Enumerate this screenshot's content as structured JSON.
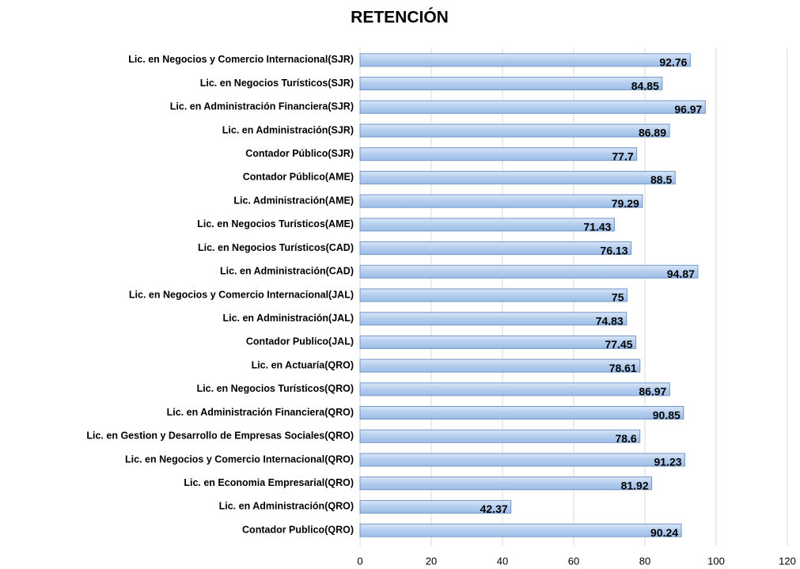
{
  "chart_data": {
    "type": "bar",
    "orientation": "horizontal",
    "title": "RETENCIÓN",
    "categories": [
      "Lic. en Negocios y Comercio Internacional(SJR)",
      "Lic. en Negocios Turísticos(SJR)",
      "Lic. en Administración Financiera(SJR)",
      "Lic. en Administración(SJR)",
      "Contador Público(SJR)",
      "Contador Público(AME)",
      "Lic. Administración(AME)",
      "Lic. en Negocios Turísticos(AME)",
      "Lic. en Negocios Turísticos(CAD)",
      "Lic. en Administración(CAD)",
      "Lic. en Negocios y Comercio Internacional(JAL)",
      "Lic. en Administración(JAL)",
      "Contador Publico(JAL)",
      "Lic. en Actuaría(QRO)",
      "Lic. en Negocios Turísticos(QRO)",
      "Lic. en Administración Financiera(QRO)",
      "Lic. en Gestion y Desarrollo de Empresas Sociales(QRO)",
      "Lic. en Negocios y Comercio Internacional(QRO)",
      "Lic. en Economia Empresarial(QRO)",
      "Lic. en Administración(QRO)",
      "Contador Publico(QRO)"
    ],
    "values": [
      92.76,
      84.85,
      96.97,
      86.89,
      77.7,
      88.5,
      79.29,
      71.43,
      76.13,
      94.87,
      75,
      74.83,
      77.45,
      78.61,
      86.97,
      90.85,
      78.6,
      91.23,
      81.92,
      42.37,
      90.24
    ],
    "color": "#b3cdee",
    "xlim": [
      0,
      120
    ],
    "xticks": [
      0,
      20,
      40,
      60,
      80,
      100,
      120
    ],
    "grid": true
  }
}
